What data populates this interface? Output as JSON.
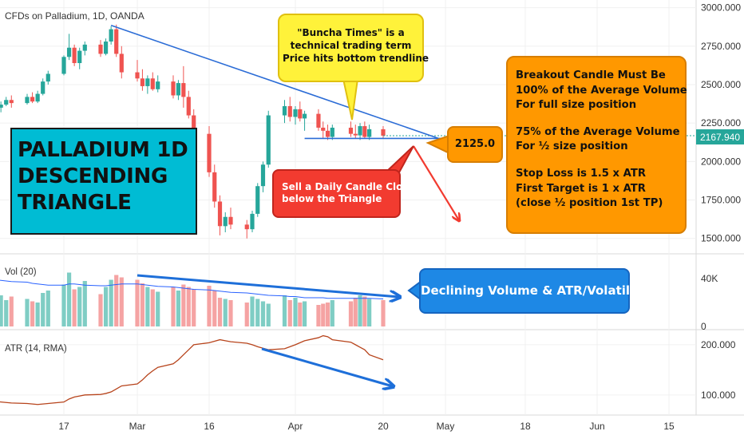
{
  "chart_data": {
    "type": "candlestick",
    "title": "CFDs on Palladium, 1D, OANDA",
    "date_axis": {
      "tick_labels": [
        "17",
        "Mar",
        "16",
        "Apr",
        "20",
        "May",
        "18",
        "Jun",
        "15"
      ],
      "tick_dates": [
        "2020-02-17",
        "2020-03-02",
        "2020-03-16",
        "2020-04-01",
        "2020-04-20",
        "2020-05-01",
        "2020-05-18",
        "2020-06-01",
        "2020-06-15"
      ]
    },
    "price_axis": {
      "range": [
        1400,
        3050
      ],
      "tick_labels": [
        "3000.000",
        "2750.000",
        "2500.000",
        "2250.000",
        "2000.000",
        "1750.000",
        "1500.000"
      ],
      "ticks": [
        3000,
        2750,
        2500,
        2250,
        2000,
        1750,
        1500
      ]
    },
    "last_price_label": "2167.940",
    "last_price": 2167.94,
    "candles": [
      {
        "date": "2020-02-03",
        "open": 2360,
        "high": 2430,
        "low": 2340,
        "close": 2410
      },
      {
        "date": "2020-02-04",
        "open": 2410,
        "high": 2440,
        "low": 2335,
        "close": 2350
      },
      {
        "date": "2020-02-05",
        "open": 2350,
        "high": 2390,
        "low": 2320,
        "close": 2370
      },
      {
        "date": "2020-02-06",
        "open": 2370,
        "high": 2420,
        "low": 2360,
        "close": 2400
      },
      {
        "date": "2020-02-07",
        "open": 2400,
        "high": 2430,
        "low": 2350,
        "close": 2380
      },
      {
        "date": "2020-02-10",
        "open": 2380,
        "high": 2440,
        "low": 2370,
        "close": 2420
      },
      {
        "date": "2020-02-11",
        "open": 2420,
        "high": 2450,
        "low": 2380,
        "close": 2390
      },
      {
        "date": "2020-02-12",
        "open": 2390,
        "high": 2460,
        "low": 2380,
        "close": 2440
      },
      {
        "date": "2020-02-13",
        "open": 2440,
        "high": 2540,
        "low": 2430,
        "close": 2520
      },
      {
        "date": "2020-02-14",
        "open": 2520,
        "high": 2590,
        "low": 2500,
        "close": 2570
      },
      {
        "date": "2020-02-17",
        "open": 2570,
        "high": 2690,
        "low": 2560,
        "close": 2680
      },
      {
        "date": "2020-02-18",
        "open": 2680,
        "high": 2830,
        "low": 2660,
        "close": 2740
      },
      {
        "date": "2020-02-19",
        "open": 2740,
        "high": 2760,
        "low": 2620,
        "close": 2640
      },
      {
        "date": "2020-02-20",
        "open": 2640,
        "high": 2740,
        "low": 2600,
        "close": 2720
      },
      {
        "date": "2020-02-21",
        "open": 2720,
        "high": 2780,
        "low": 2690,
        "close": 2760
      },
      {
        "date": "2020-02-24",
        "open": 2760,
        "high": 2790,
        "low": 2680,
        "close": 2700
      },
      {
        "date": "2020-02-25",
        "open": 2700,
        "high": 2800,
        "low": 2690,
        "close": 2780
      },
      {
        "date": "2020-02-26",
        "open": 2780,
        "high": 2880,
        "low": 2760,
        "close": 2860
      },
      {
        "date": "2020-02-27",
        "open": 2860,
        "high": 2890,
        "low": 2680,
        "close": 2700
      },
      {
        "date": "2020-02-28",
        "open": 2700,
        "high": 2750,
        "low": 2540,
        "close": 2580
      },
      {
        "date": "2020-03-02",
        "open": 2580,
        "high": 2660,
        "low": 2520,
        "close": 2540
      },
      {
        "date": "2020-03-03",
        "open": 2540,
        "high": 2600,
        "low": 2460,
        "close": 2490
      },
      {
        "date": "2020-03-04",
        "open": 2490,
        "high": 2560,
        "low": 2440,
        "close": 2540
      },
      {
        "date": "2020-03-05",
        "open": 2540,
        "high": 2580,
        "low": 2460,
        "close": 2470
      },
      {
        "date": "2020-03-06",
        "open": 2470,
        "high": 2560,
        "low": 2450,
        "close": 2520
      },
      {
        "date": "2020-03-09",
        "open": 2520,
        "high": 2560,
        "low": 2410,
        "close": 2430
      },
      {
        "date": "2020-03-10",
        "open": 2430,
        "high": 2530,
        "low": 2400,
        "close": 2510
      },
      {
        "date": "2020-03-11",
        "open": 2510,
        "high": 2620,
        "low": 2350,
        "close": 2420
      },
      {
        "date": "2020-03-12",
        "open": 2420,
        "high": 2460,
        "low": 2280,
        "close": 2300
      },
      {
        "date": "2020-03-13",
        "open": 2300,
        "high": 2340,
        "low": 2100,
        "close": 2180
      },
      {
        "date": "2020-03-16",
        "open": 2180,
        "high": 2230,
        "low": 1900,
        "close": 1930
      },
      {
        "date": "2020-03-17",
        "open": 1930,
        "high": 1980,
        "low": 1700,
        "close": 1740
      },
      {
        "date": "2020-03-18",
        "open": 1740,
        "high": 1780,
        "low": 1520,
        "close": 1580
      },
      {
        "date": "2020-03-19",
        "open": 1580,
        "high": 1670,
        "low": 1540,
        "close": 1640
      },
      {
        "date": "2020-03-20",
        "open": 1640,
        "high": 1700,
        "low": 1560,
        "close": 1590
      },
      {
        "date": "2020-03-23",
        "open": 1590,
        "high": 1620,
        "low": 1500,
        "close": 1560
      },
      {
        "date": "2020-03-24",
        "open": 1560,
        "high": 1680,
        "low": 1540,
        "close": 1660
      },
      {
        "date": "2020-03-25",
        "open": 1660,
        "high": 1860,
        "low": 1640,
        "close": 1840
      },
      {
        "date": "2020-03-26",
        "open": 1840,
        "high": 2000,
        "low": 1800,
        "close": 1980
      },
      {
        "date": "2020-03-27",
        "open": 1980,
        "high": 2330,
        "low": 1960,
        "close": 2300
      },
      {
        "date": "2020-03-30",
        "open": 2300,
        "high": 2400,
        "low": 2250,
        "close": 2360
      },
      {
        "date": "2020-03-31",
        "open": 2360,
        "high": 2420,
        "low": 2260,
        "close": 2290
      },
      {
        "date": "2020-04-01",
        "open": 2290,
        "high": 2360,
        "low": 2240,
        "close": 2340
      },
      {
        "date": "2020-04-02",
        "open": 2340,
        "high": 2390,
        "low": 2260,
        "close": 2280
      },
      {
        "date": "2020-04-03",
        "open": 2280,
        "high": 2330,
        "low": 2200,
        "close": 2310
      },
      {
        "date": "2020-04-06",
        "open": 2310,
        "high": 2340,
        "low": 2200,
        "close": 2220
      },
      {
        "date": "2020-04-07",
        "open": 2220,
        "high": 2260,
        "low": 2150,
        "close": 2200
      },
      {
        "date": "2020-04-08",
        "open": 2200,
        "high": 2240,
        "low": 2140,
        "close": 2160
      },
      {
        "date": "2020-04-09",
        "open": 2160,
        "high": 2240,
        "low": 2140,
        "close": 2220
      },
      {
        "date": "2020-04-13",
        "open": 2220,
        "high": 2260,
        "low": 2160,
        "close": 2180
      },
      {
        "date": "2020-04-14",
        "open": 2180,
        "high": 2240,
        "low": 2150,
        "close": 2170
      },
      {
        "date": "2020-04-15",
        "open": 2170,
        "high": 2250,
        "low": 2140,
        "close": 2230
      },
      {
        "date": "2020-04-16",
        "open": 2230,
        "high": 2260,
        "low": 2150,
        "close": 2160
      },
      {
        "date": "2020-04-17",
        "open": 2160,
        "high": 2240,
        "low": 2140,
        "close": 2210
      },
      {
        "date": "2020-04-20",
        "open": 2210,
        "high": 2230,
        "low": 2150,
        "close": 2168
      }
    ],
    "descending_trendline": {
      "from": {
        "date": "2020-02-26",
        "price": 2885
      },
      "to": {
        "date": "2020-04-30",
        "price": 2140
      }
    },
    "bottom_trendline": {
      "from": {
        "date": "2020-04-03",
        "price": 2150
      },
      "to": {
        "date": "2020-04-30",
        "price": 2150
      }
    },
    "volume": {
      "label": "Vol (20)",
      "tick_labels": [
        "40K",
        "0"
      ],
      "ticks": [
        40000,
        0
      ],
      "range": [
        0,
        58000
      ],
      "values": [
        30000,
        24000,
        26000,
        22000,
        25000,
        23000,
        21000,
        20000,
        28000,
        30000,
        35000,
        45000,
        31000,
        33000,
        38000,
        27000,
        33000,
        39000,
        43000,
        41000,
        39000,
        36000,
        33000,
        31000,
        29000,
        33000,
        30000,
        35000,
        33000,
        31000,
        34000,
        30000,
        24000,
        23000,
        22000,
        20000,
        25000,
        23000,
        21000,
        19000,
        26000,
        22000,
        24000,
        20000,
        21000,
        18000,
        19000,
        20000,
        22000,
        21000,
        24000,
        26000,
        25000,
        23000,
        22000
      ],
      "ma": [
        40000,
        39000,
        38500,
        38000,
        37500,
        37000,
        36000,
        35500,
        35000,
        34500,
        34500,
        35500,
        35500,
        35000,
        34500,
        34000,
        34000,
        34500,
        35000,
        35500,
        35500,
        35000,
        34500,
        34000,
        33500,
        33000,
        32500,
        32000,
        31500,
        31000,
        30500,
        30000,
        29500,
        29000,
        28500,
        28000,
        27500,
        27000,
        26500,
        26000,
        25500,
        25000,
        25000,
        24500,
        24000,
        24000,
        24000,
        23500,
        23500,
        23500,
        23500,
        23500,
        23500,
        23500,
        23000
      ]
    },
    "atr": {
      "label": "ATR (14, RMA)",
      "tick_labels": [
        "200.000",
        "100.000"
      ],
      "ticks": [
        200,
        100
      ],
      "range": [
        60,
        230
      ],
      "values": [
        88,
        87,
        86,
        85,
        84,
        83,
        82,
        81,
        82,
        83,
        86,
        92,
        96,
        98,
        100,
        101,
        103,
        106,
        112,
        118,
        122,
        130,
        140,
        148,
        155,
        162,
        170,
        180,
        190,
        200,
        204,
        207,
        210,
        208,
        206,
        203,
        200,
        196,
        193,
        190,
        192,
        196,
        200,
        204,
        208,
        214,
        218,
        216,
        210,
        205,
        200,
        195,
        190,
        180,
        170
      ]
    },
    "annotations": {
      "title_box": [
        "PALLADIUM 1D",
        "DESCENDING",
        "TRIANGLE"
      ],
      "buncha_times": [
        "\"Buncha Times\" is a",
        "technical trading term",
        "Price hits bottom trendline"
      ],
      "rules": [
        "Breakout Candle Must Be",
        "100% of the Average Volume",
        "For full size position",
        "75% of the Average Volume",
        "For ½ size position",
        "Stop Loss is 1.5 x ATR",
        "First Target is 1 x ATR",
        "(close ½ position 1st TP)"
      ],
      "price_label": "2125.0",
      "sell_box": [
        "Sell a Daily Candle Close",
        "below the Triangle"
      ],
      "volume_note": "Declining Volume & ATR/Volatility"
    },
    "colors": {
      "up": "#26a69a",
      "down": "#ef5350",
      "vol_up": "#7fcdc4",
      "vol_down": "#f5a3a3",
      "trend": "#2b6cd6",
      "vol_ma": "#2962ff",
      "atr": "#b7441c",
      "arrow_red": "#f23b30",
      "arrow_blue": "#1e6fd9"
    }
  }
}
